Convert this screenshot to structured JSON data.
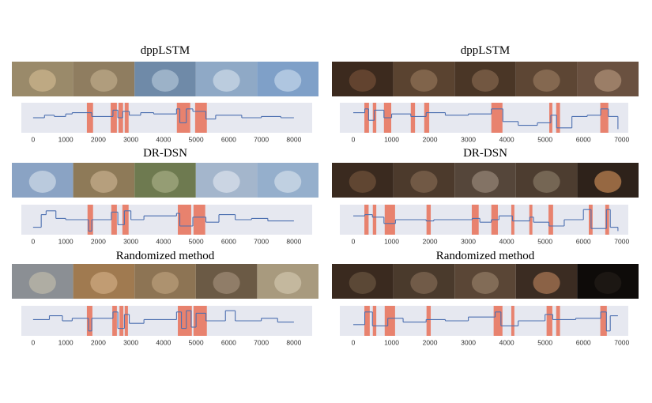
{
  "chart_data": [
    {
      "type": "line",
      "title": "dppLSTM",
      "step": true,
      "xlim": [
        -360,
        8560
      ],
      "ylim": [
        0,
        1
      ],
      "xticks": [
        0,
        1000,
        2000,
        3000,
        4000,
        5000,
        6000,
        7000,
        8000
      ],
      "background": "#e6e8f0",
      "series": [
        {
          "color": "#4c6fb0",
          "x": [
            0,
            350,
            650,
            1000,
            1200,
            1700,
            1800,
            2450,
            2600,
            2750,
            2950,
            3300,
            3700,
            4400,
            4500,
            4700,
            4900,
            5300,
            5600,
            6400,
            7000,
            7600,
            8000
          ],
          "values": [
            0.5,
            0.6,
            0.55,
            0.65,
            0.7,
            0.7,
            0.55,
            0.8,
            0.5,
            0.75,
            0.6,
            0.7,
            0.65,
            0.85,
            0.3,
            0.85,
            0.75,
            0.45,
            0.6,
            0.5,
            0.55,
            0.5,
            0.5
          ]
        }
      ],
      "highlights": {
        "color": "#e8826e",
        "spans": [
          [
            1650,
            1840
          ],
          [
            2380,
            2570
          ],
          [
            2620,
            2760
          ],
          [
            2810,
            2930
          ],
          [
            4410,
            4820
          ],
          [
            4970,
            5330
          ]
        ]
      }
    },
    {
      "type": "line",
      "title": "dppLSTM",
      "step": true,
      "xlim": [
        -350,
        7170
      ],
      "ylim": [
        0,
        1
      ],
      "xticks": [
        0,
        1000,
        2000,
        3000,
        4000,
        5000,
        6000,
        7000
      ],
      "background": "#e6e8f0",
      "series": [
        {
          "color": "#4c6fb0",
          "x": [
            0,
            300,
            400,
            550,
            800,
            1000,
            1500,
            1900,
            2400,
            3000,
            3600,
            3900,
            4300,
            4800,
            5150,
            5300,
            5700,
            6100,
            6450,
            6650,
            6900
          ],
          "values": [
            0.7,
            0.85,
            0.4,
            0.8,
            0.5,
            0.65,
            0.55,
            0.7,
            0.6,
            0.65,
            0.85,
            0.35,
            0.2,
            0.3,
            0.6,
            0.1,
            0.55,
            0.6,
            0.85,
            0.55,
            0.05
          ]
        }
      ],
      "highlights": {
        "color": "#e8826e",
        "spans": [
          [
            290,
            410
          ],
          [
            510,
            600
          ],
          [
            800,
            990
          ],
          [
            1500,
            1610
          ],
          [
            1850,
            1980
          ],
          [
            3600,
            3890
          ],
          [
            5110,
            5190
          ],
          [
            5290,
            5390
          ],
          [
            6440,
            6650
          ]
        ]
      }
    },
    {
      "type": "line",
      "title": "DR-DSN",
      "step": true,
      "xlim": [
        -360,
        8560
      ],
      "ylim": [
        0,
        1
      ],
      "xticks": [
        0,
        1000,
        2000,
        3000,
        4000,
        5000,
        6000,
        7000,
        8000
      ],
      "background": "#e6e8f0",
      "series": [
        {
          "color": "#4c6fb0",
          "x": [
            0,
            250,
            400,
            700,
            1000,
            1700,
            1800,
            2400,
            2600,
            2800,
            3000,
            3400,
            4400,
            4500,
            4900,
            5300,
            5700,
            6200,
            6700,
            7200,
            8000
          ],
          "values": [
            0.2,
            0.7,
            0.85,
            0.55,
            0.5,
            0.05,
            0.5,
            0.8,
            0.3,
            0.85,
            0.5,
            0.65,
            0.75,
            0.25,
            0.6,
            0.4,
            0.7,
            0.5,
            0.55,
            0.45,
            0.45
          ]
        }
      ],
      "highlights": {
        "color": "#e8826e",
        "spans": [
          [
            1670,
            1840
          ],
          [
            2400,
            2570
          ],
          [
            2740,
            2930
          ],
          [
            4440,
            4850
          ],
          [
            4920,
            5280
          ]
        ]
      }
    },
    {
      "type": "line",
      "title": "DR-DSN",
      "step": true,
      "xlim": [
        -350,
        7170
      ],
      "ylim": [
        0,
        1
      ],
      "xticks": [
        0,
        1000,
        2000,
        3000,
        4000,
        5000,
        6000,
        7000
      ],
      "background": "#e6e8f0",
      "series": [
        {
          "color": "#4c6fb0",
          "x": [
            0,
            300,
            500,
            800,
            1100,
            1900,
            2100,
            3100,
            3300,
            3600,
            3800,
            4150,
            4600,
            4700,
            5100,
            5500,
            6000,
            6200,
            6600,
            6700,
            6900
          ],
          "values": [
            0.65,
            0.7,
            0.6,
            0.35,
            0.5,
            0.45,
            0.5,
            0.55,
            0.4,
            0.5,
            0.65,
            0.45,
            0.6,
            0.4,
            0.25,
            0.5,
            0.9,
            0.15,
            0.9,
            0.2,
            0.05
          ]
        }
      ],
      "highlights": {
        "color": "#e8826e",
        "spans": [
          [
            290,
            400
          ],
          [
            510,
            600
          ],
          [
            820,
            1090
          ],
          [
            1910,
            2020
          ],
          [
            3090,
            3270
          ],
          [
            3600,
            3770
          ],
          [
            4120,
            4200
          ],
          [
            4590,
            4670
          ],
          [
            5090,
            5210
          ],
          [
            6140,
            6240
          ],
          [
            6570,
            6670
          ]
        ]
      }
    },
    {
      "type": "line",
      "title": "Randomized method",
      "step": true,
      "xlim": [
        -360,
        8560
      ],
      "ylim": [
        0,
        1
      ],
      "xticks": [
        0,
        1000,
        2000,
        3000,
        4000,
        5000,
        6000,
        7000,
        8000
      ],
      "background": "#e6e8f0",
      "series": [
        {
          "color": "#4c6fb0",
          "x": [
            0,
            500,
            900,
            1200,
            1700,
            1800,
            2450,
            2600,
            2800,
            2950,
            3400,
            4400,
            4550,
            4700,
            4850,
            5000,
            5300,
            5900,
            6200,
            7000,
            7500,
            8000
          ],
          "values": [
            0.55,
            0.7,
            0.5,
            0.6,
            0.1,
            0.6,
            0.85,
            0.2,
            0.75,
            0.4,
            0.55,
            0.85,
            0.2,
            0.9,
            0.25,
            0.8,
            0.5,
            0.9,
            0.5,
            0.6,
            0.45,
            0.45
          ]
        }
      ],
      "highlights": {
        "color": "#e8826e",
        "spans": [
          [
            1650,
            1820
          ],
          [
            2430,
            2570
          ],
          [
            2650,
            2770
          ],
          [
            2810,
            2910
          ],
          [
            4440,
            4870
          ],
          [
            4920,
            5330
          ]
        ]
      }
    },
    {
      "type": "line",
      "title": "Randomized method",
      "step": true,
      "xlim": [
        -350,
        7170
      ],
      "ylim": [
        0,
        1
      ],
      "xticks": [
        0,
        1000,
        2000,
        3000,
        4000,
        5000,
        6000,
        7000
      ],
      "background": "#e6e8f0",
      "series": [
        {
          "color": "#4c6fb0",
          "x": [
            0,
            300,
            500,
            900,
            1300,
            1900,
            2400,
            3000,
            3700,
            3850,
            4300,
            5000,
            5200,
            5800,
            6450,
            6600,
            6700,
            6900
          ],
          "values": [
            0.35,
            0.85,
            0.3,
            0.6,
            0.45,
            0.55,
            0.5,
            0.65,
            0.85,
            0.3,
            0.5,
            0.75,
            0.55,
            0.6,
            0.85,
            0.1,
            0.7,
            0.7
          ]
        }
      ],
      "highlights": {
        "color": "#e8826e",
        "spans": [
          [
            290,
            430
          ],
          [
            510,
            600
          ],
          [
            820,
            1090
          ],
          [
            1910,
            2020
          ],
          [
            3660,
            3890
          ],
          [
            4120,
            4200
          ],
          [
            5040,
            5190
          ],
          [
            5290,
            5390
          ],
          [
            6440,
            6610
          ]
        ]
      }
    }
  ]
}
